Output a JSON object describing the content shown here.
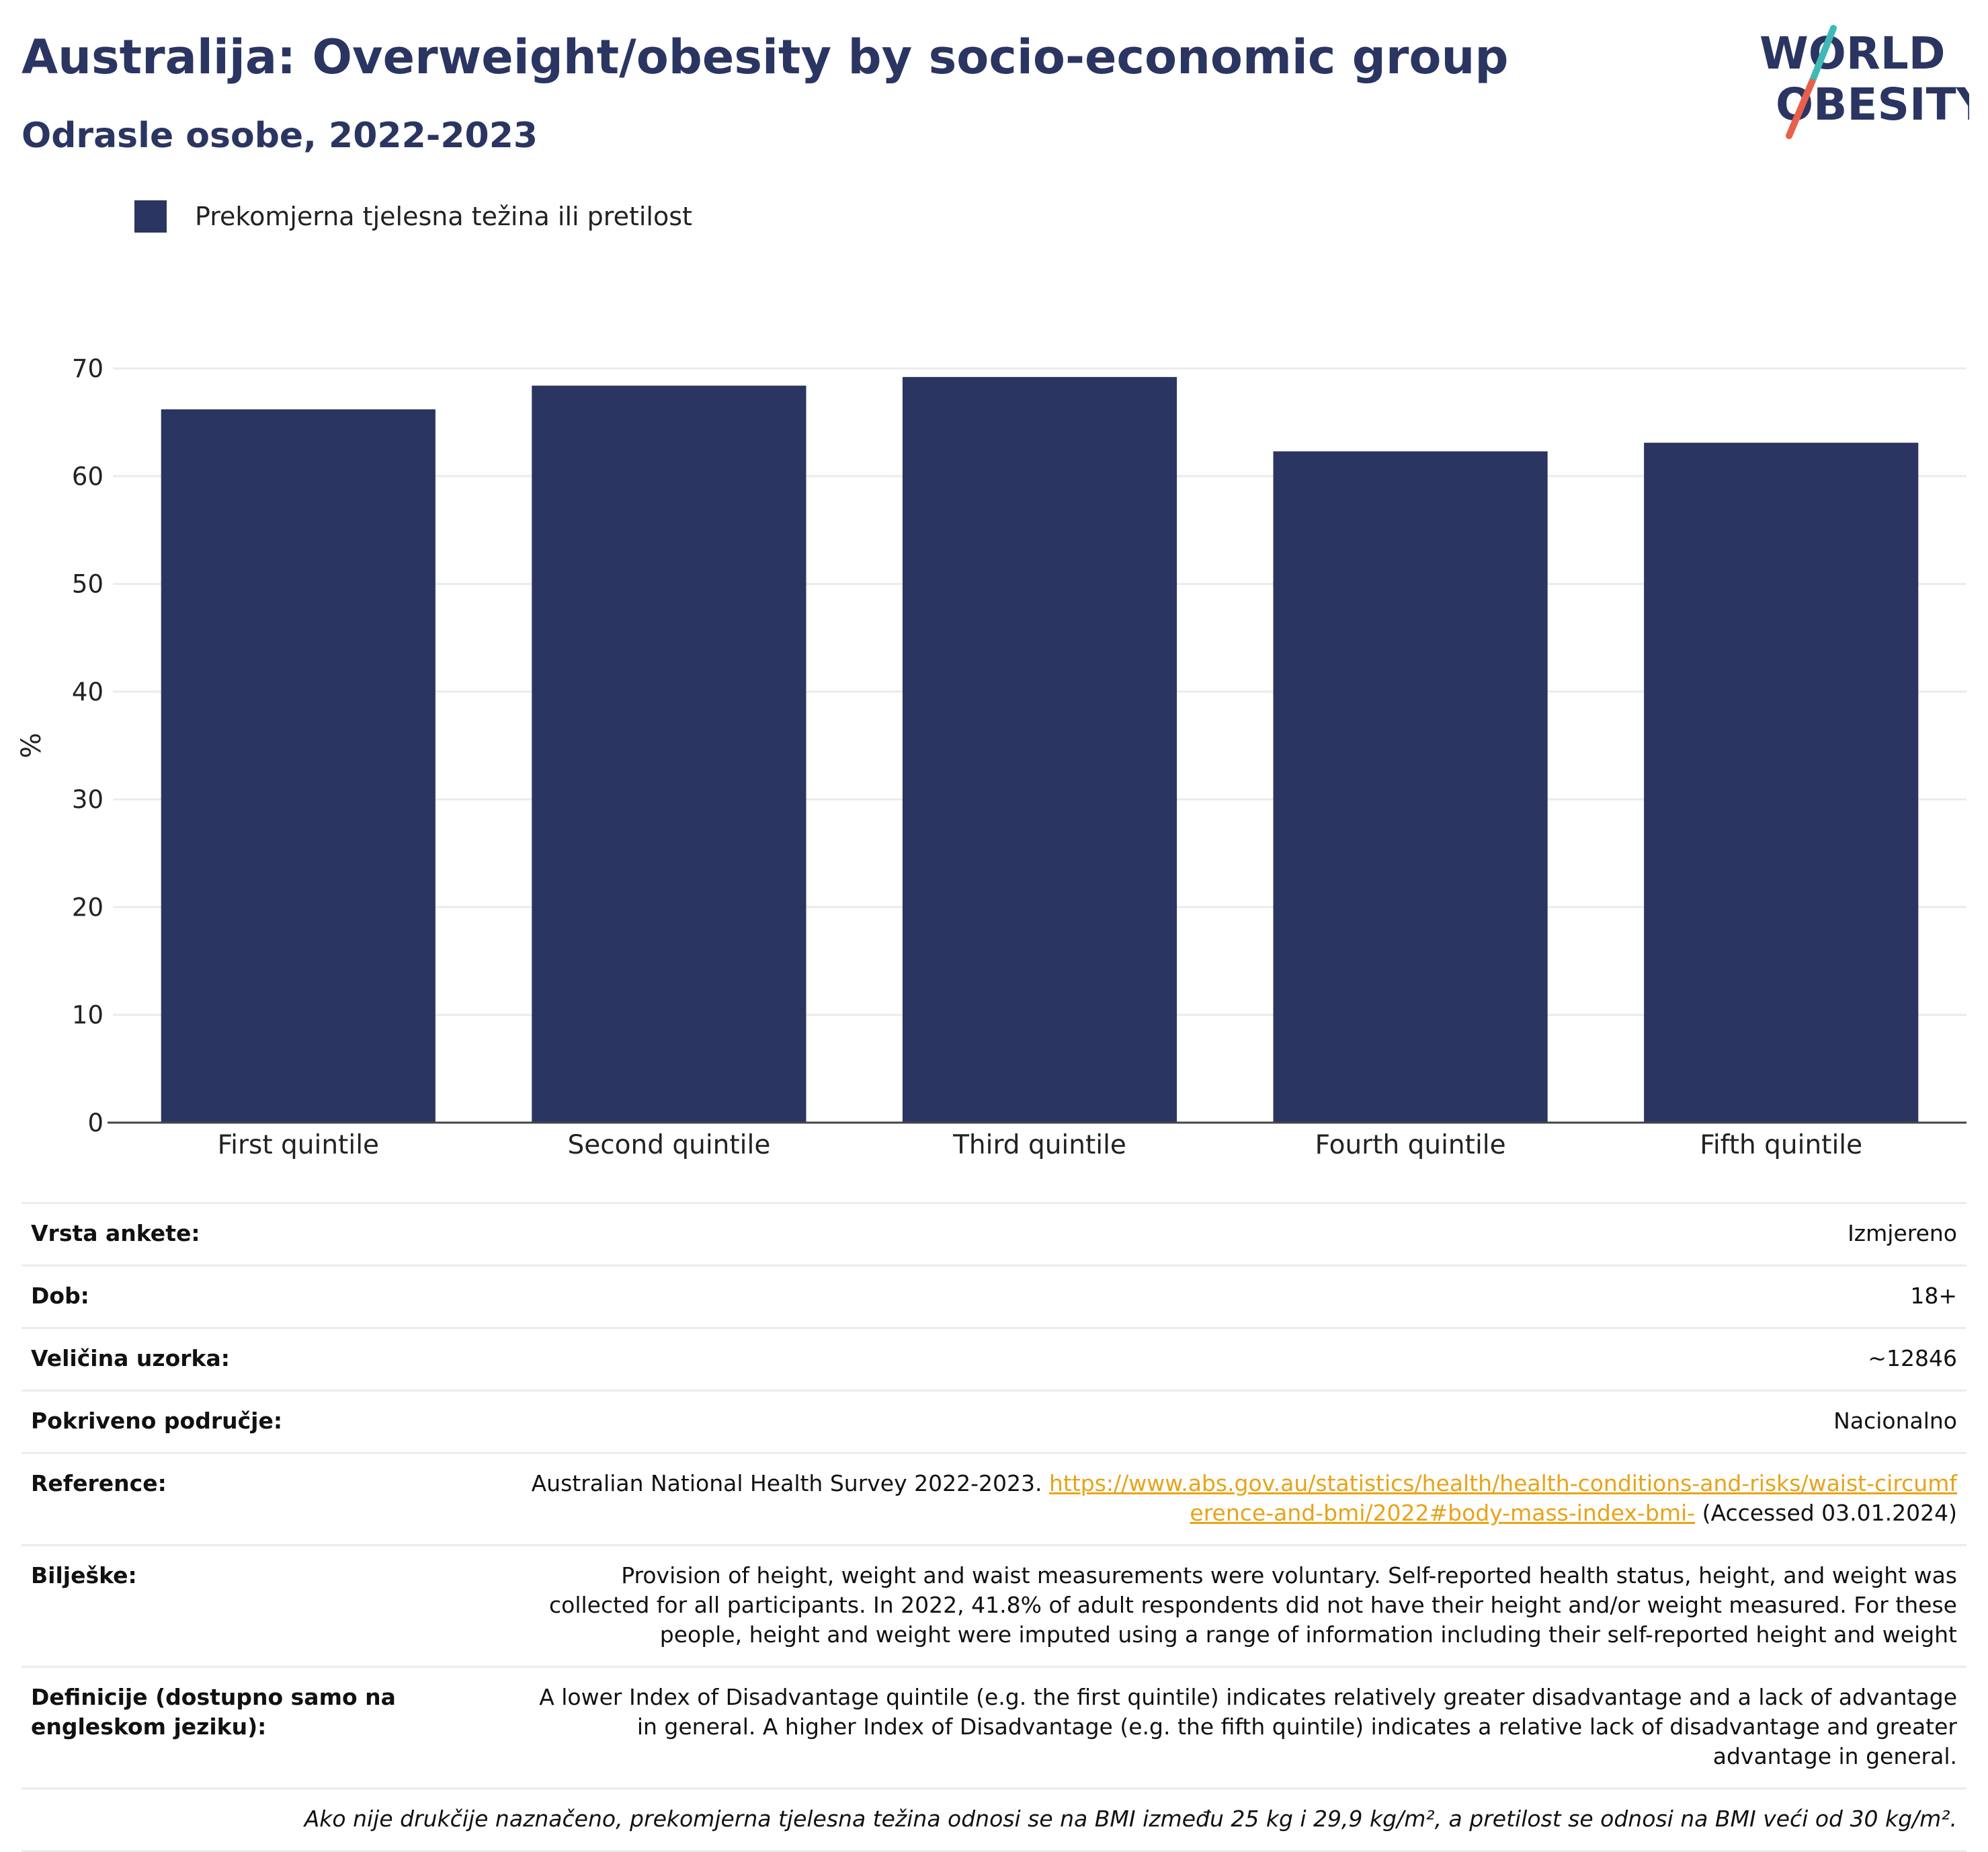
{
  "header": {
    "title": "Australija: Overweight/obesity by socio-economic group",
    "subtitle": "Odrasle osobe, 2022-2023"
  },
  "logo": {
    "line1": "WORLD",
    "line2": "OBESITY",
    "colors": {
      "text": "#2b3562",
      "slash_top": "#3fb9b5",
      "slash_bottom": "#e8604c"
    }
  },
  "colors": {
    "bar": "#2b3562",
    "grid": "#ebebeb",
    "axis": "#444444",
    "link": "#e8a317"
  },
  "chart_data": {
    "type": "bar",
    "categories": [
      "First quintile",
      "Second quintile",
      "Third quintile",
      "Fourth quintile",
      "Fifth quintile"
    ],
    "series": [
      {
        "name": "Prekomjerna tjelesna težina ili pretilost",
        "values": [
          66.2,
          68.4,
          69.2,
          62.3,
          63.1
        ]
      }
    ],
    "ylabel": "%",
    "xlabel": "",
    "ylim": [
      0,
      70
    ],
    "yticks": [
      0,
      10,
      20,
      30,
      40,
      50,
      60,
      70
    ],
    "grid": true,
    "legend": "top-left"
  },
  "info": {
    "survey_type": {
      "label": "Vrsta ankete:",
      "value": "Izmjereno"
    },
    "age": {
      "label": "Dob:",
      "value": "18+"
    },
    "sample": {
      "label": "Veličina uzorka:",
      "value": "~12846"
    },
    "area": {
      "label": "Pokriveno područje:",
      "value": "Nacionalno"
    },
    "reference": {
      "label": "Reference:",
      "text": "Australian National Health Survey 2022-2023.",
      "link": "https://www.abs.gov.au/statistics/health/health-conditions-and-risks/waist-circumference-and-bmi/2022#body-mass-index-bmi-",
      "accessed": "(Accessed 03.01.2024)"
    },
    "notes": {
      "label": "Bilješke:",
      "value": "Provision of height, weight and waist measurements were voluntary. Self-reported health status, height, and weight was collected for all participants. In 2022, 41.8% of adult respondents did not have their height and/or weight measured. For these people, height and weight were imputed using a range of information including their self-reported height and weight"
    },
    "definitions": {
      "label": "Definicije (dostupno samo na engleskom jeziku):",
      "value": "A lower Index of Disadvantage quintile (e.g. the first quintile) indicates relatively greater disadvantage and a lack of advantage in general. A higher Index of Disadvantage (e.g. the fifth quintile) indicates a relative lack of disadvantage and greater advantage in general."
    },
    "footnote": "Ako nije drukčije naznačeno, prekomjerna tjelesna težina odnosi se na BMI između 25 kg i 29,9 kg/m², a pretilost se odnosi na BMI veći od 30 kg/m²."
  }
}
